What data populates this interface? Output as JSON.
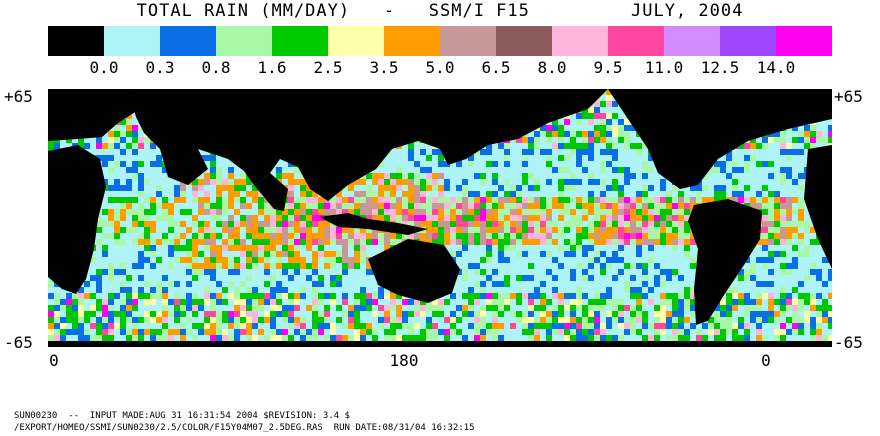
{
  "header": {
    "title": "TOTAL RAIN (MM/DAY)   -   SSM/I F15         JULY, 2004"
  },
  "legend": {
    "colors": [
      "#000000",
      "#aef4f6",
      "#0a6ee6",
      "#a8f8a8",
      "#00c800",
      "#ffffaa",
      "#ff9c00",
      "#c89898",
      "#8c5a5a",
      "#ffb4dc",
      "#ff46a0",
      "#d28cff",
      "#a046ff",
      "#ff00f0"
    ],
    "ticks": [
      "0.0",
      "0.3",
      "0.8",
      "1.6",
      "2.5",
      "3.5",
      "5.0",
      "6.5",
      "8.0",
      "9.5",
      "11.0",
      "12.5",
      "14.0"
    ]
  },
  "map": {
    "lat_top_left": "+65",
    "lat_top_right": "+65",
    "lat_bottom_left": "-65",
    "lat_bottom_right": "-65",
    "lon_labels": [
      "0",
      "180",
      "0"
    ],
    "land_color": "#000000",
    "ocean_base_color": "#aef4f6"
  },
  "footer": {
    "line1": "SUN00230  --  INPUT MADE:AUG 31 16:31:54 2004 $REVISION: 3.4 $",
    "line2": "/EXPORT/HOMEO/SSMI/SUN0230/2.5/COLOR/F15Y04M07_2.5DEG.RAS  RUN DATE:08/31/04 16:32:15"
  }
}
